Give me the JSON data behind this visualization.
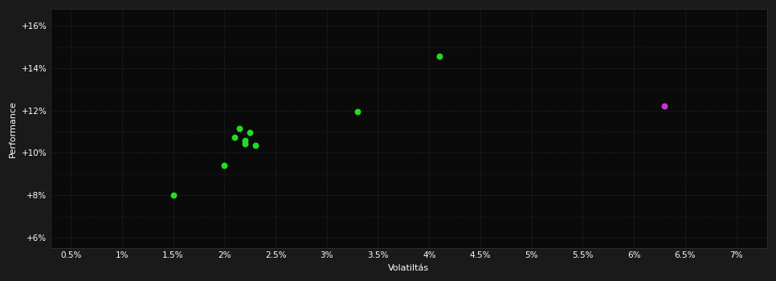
{
  "background_color": "#1a1a1a",
  "plot_bg_color": "#0a0a0a",
  "grid_color": "#333333",
  "xlabel": "Volatiltás",
  "ylabel": "Performance",
  "xlim": [
    0.003,
    0.073
  ],
  "ylim": [
    0.055,
    0.168
  ],
  "xticks": [
    0.005,
    0.01,
    0.015,
    0.02,
    0.025,
    0.03,
    0.035,
    0.04,
    0.045,
    0.05,
    0.055,
    0.06,
    0.065,
    0.07
  ],
  "yticks": [
    0.06,
    0.08,
    0.1,
    0.12,
    0.14,
    0.16
  ],
  "green_points": [
    [
      0.015,
      0.08
    ],
    [
      0.02,
      0.094
    ],
    [
      0.021,
      0.1075
    ],
    [
      0.022,
      0.106
    ],
    [
      0.0215,
      0.1115
    ],
    [
      0.0225,
      0.1095
    ],
    [
      0.022,
      0.1045
    ],
    [
      0.023,
      0.1035
    ],
    [
      0.033,
      0.1195
    ],
    [
      0.041,
      0.1455
    ]
  ],
  "magenta_points": [
    [
      0.063,
      0.122
    ]
  ],
  "green_color": "#22dd22",
  "magenta_color": "#cc33cc",
  "dot_size": 22,
  "font_color": "#ffffff",
  "axis_label_fontsize": 8,
  "tick_fontsize": 7.5
}
